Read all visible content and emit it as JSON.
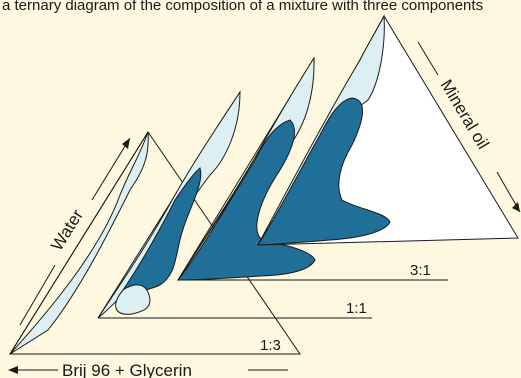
{
  "header": {
    "cropped_caption": "a ternary diagram of the composition of a mixture with three components"
  },
  "axes": {
    "bottom": "Brij 96 + Glycerin",
    "left": "Water",
    "right": "Mineral oil"
  },
  "ratios": [
    "3:1",
    "1:1",
    "1:3"
  ],
  "colors": {
    "background": "#fdf8df",
    "dark_phase": "#1f6f99",
    "light_phase": "#dceff2",
    "line": "#1a1a1a"
  }
}
